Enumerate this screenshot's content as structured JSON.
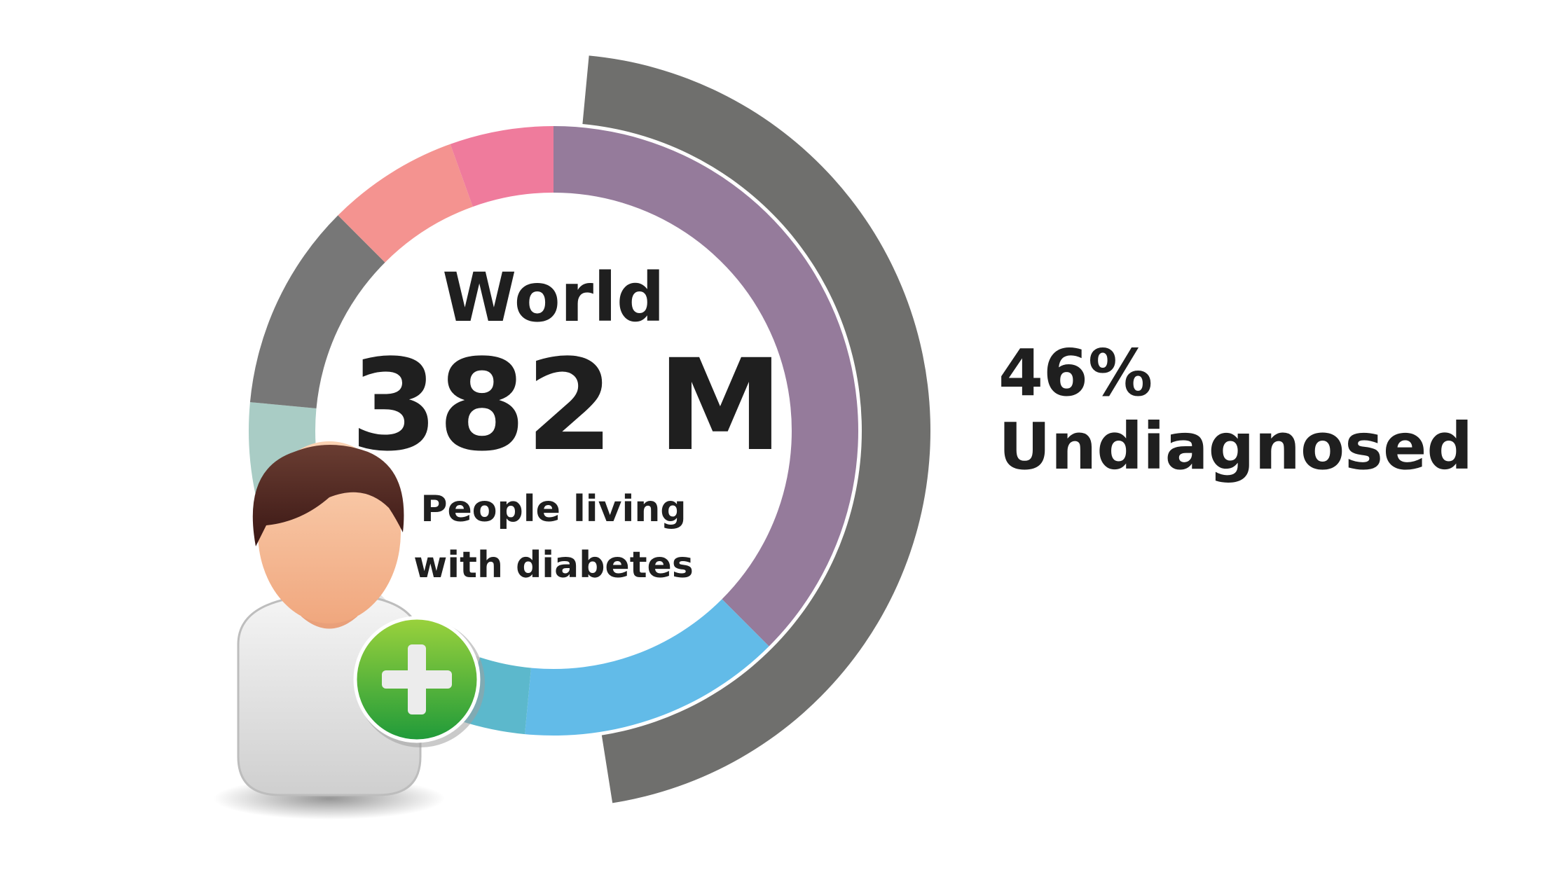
{
  "chart_data": {
    "type": "pie",
    "style": "donut",
    "total_label": "382 M",
    "region": "World",
    "description_lines": [
      "People living",
      "with  diabetes"
    ],
    "segments": [
      {
        "color": "#957b9b",
        "share": 0.375
      },
      {
        "color": "#62bbe8",
        "share": 0.14
      },
      {
        "color": "#5cb8cc",
        "share": 0.035
      },
      {
        "color": "#e3e3e3",
        "share": 0.135
      },
      {
        "color": "#a9ccc5",
        "share": 0.08
      },
      {
        "color": "#777777",
        "share": 0.11
      },
      {
        "color": "#f49390",
        "share": 0.07
      },
      {
        "color": "#ef7b9c",
        "share": 0.055
      }
    ],
    "outer_arc": {
      "color": "#6f6f6d",
      "share": 0.46
    },
    "annotation_value": "46%",
    "annotation_label": "Undiagnosed"
  },
  "icons": {
    "avatar": "person-add-icon"
  }
}
